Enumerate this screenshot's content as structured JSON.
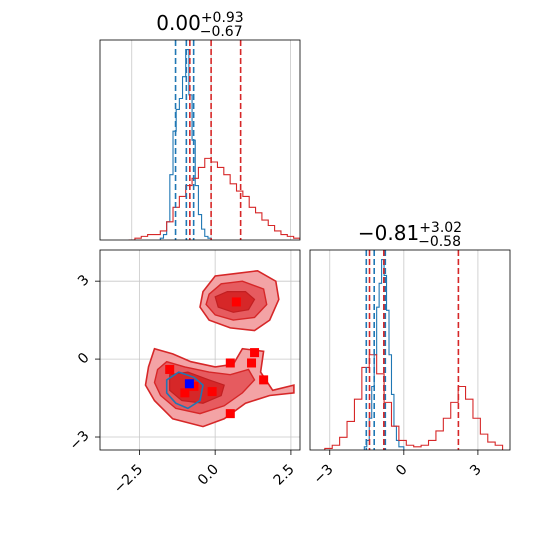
{
  "chart_data": [
    {
      "type": "histogram",
      "title_main": "0.00",
      "title_sup": "+0.93",
      "title_sub": "−0.67",
      "xlim": [
        -3.5,
        2.8
      ],
      "x_ticks": [
        -2.5,
        0.0,
        2.5
      ],
      "grid": true,
      "series": [
        {
          "color": "#1f77b4",
          "bin_edges": [
            -1.6,
            -1.5,
            -1.4,
            -1.3,
            -1.2,
            -1.1,
            -1.0,
            -0.9,
            -0.8,
            -0.7,
            -0.6,
            -0.5,
            -0.4,
            -0.3,
            -0.2,
            -0.1,
            0.0
          ],
          "counts": [
            1,
            3,
            10,
            36,
            60,
            72,
            78,
            90,
            105,
            80,
            55,
            30,
            14,
            6,
            2,
            1
          ]
        },
        {
          "color": "#d62728",
          "bin_edges": [
            -2.6,
            -2.4,
            -2.2,
            -2.0,
            -1.8,
            -1.6,
            -1.4,
            -1.2,
            -1.0,
            -0.8,
            -0.6,
            -0.4,
            -0.2,
            0.0,
            0.2,
            0.4,
            0.6,
            0.8,
            1.0,
            1.2,
            1.4,
            1.6,
            1.8,
            2.0,
            2.2,
            2.4,
            2.6,
            2.8
          ],
          "counts": [
            0,
            1,
            2,
            3,
            3,
            5,
            10,
            18,
            24,
            30,
            34,
            40,
            45,
            43,
            40,
            36,
            31,
            27,
            24,
            18,
            15,
            11,
            8,
            5,
            3,
            2,
            1
          ]
        }
      ],
      "quantile_lines": [
        {
          "color": "#1f77b4",
          "x": [
            -1.12,
            -0.78,
            -0.55
          ]
        },
        {
          "color": "#d62728",
          "x": [
            -0.67,
            0.0,
            0.93
          ]
        }
      ]
    },
    {
      "type": "histogram",
      "title_main": "−0.81",
      "title_sup": "+3.02",
      "title_sub": "−0.58",
      "xlim": [
        -3.8,
        4.3
      ],
      "x_ticks": [
        -3,
        0,
        3
      ],
      "grid": true,
      "series": [
        {
          "color": "#1f77b4",
          "bin_edges": [
            -1.6,
            -1.5,
            -1.4,
            -1.3,
            -1.2,
            -1.1,
            -1.0,
            -0.9,
            -0.8,
            -0.7,
            -0.6,
            -0.5,
            -0.4,
            -0.3,
            -0.2,
            0.0
          ],
          "counts": [
            2,
            6,
            20,
            40,
            60,
            90,
            105,
            120,
            110,
            88,
            60,
            35,
            15,
            6,
            2
          ]
        },
        {
          "color": "#d62728",
          "bin_edges": [
            -3.2,
            -2.9,
            -2.6,
            -2.3,
            -2.0,
            -1.7,
            -1.4,
            -1.1,
            -0.8,
            -0.5,
            -0.2,
            0.1,
            0.4,
            0.7,
            1.0,
            1.3,
            1.6,
            1.9,
            2.2,
            2.5,
            2.8,
            3.1,
            3.4,
            3.7,
            4.0
          ],
          "counts": [
            1,
            3,
            8,
            18,
            32,
            52,
            60,
            48,
            30,
            15,
            6,
            3,
            2,
            3,
            6,
            12,
            20,
            30,
            40,
            32,
            20,
            10,
            5,
            3
          ]
        }
      ],
      "quantile_lines": [
        {
          "color": "#1f77b4",
          "x": [
            -1.52,
            -1.2,
            -0.75
          ]
        },
        {
          "color": "#d62728",
          "x": [
            -1.39,
            -0.81,
            2.21
          ]
        }
      ]
    },
    {
      "type": "scatter",
      "subtype": "2d-contour",
      "xlim": [
        -3.8,
        2.8
      ],
      "ylim": [
        -3.5,
        4.2
      ],
      "x_ticks": [
        -2.5,
        0.0,
        2.5
      ],
      "x_tick_labels": [
        "−2.5",
        "0.0",
        "2.5"
      ],
      "y_ticks": [
        -3,
        0,
        3
      ],
      "y_tick_labels": [
        "−3",
        "0",
        "3"
      ],
      "grid": true,
      "markers": [
        {
          "x": 0.7,
          "y": 2.2,
          "color": "#ff0000"
        },
        {
          "x": 0.5,
          "y": -0.15,
          "color": "#ff0000"
        },
        {
          "x": 1.3,
          "y": 0.25,
          "color": "#ff0000"
        },
        {
          "x": 1.2,
          "y": -0.15,
          "color": "#ff0000"
        },
        {
          "x": 1.6,
          "y": -0.8,
          "color": "#ff0000"
        },
        {
          "x": -1.5,
          "y": -0.4,
          "color": "#ff0000"
        },
        {
          "x": -1.0,
          "y": -1.3,
          "color": "#ff0000"
        },
        {
          "x": -0.7,
          "y": -1.05,
          "color": "#ff0000"
        },
        {
          "x": -0.1,
          "y": -1.25,
          "color": "#ff0000"
        },
        {
          "x": 0.5,
          "y": -2.1,
          "color": "#ff0000"
        },
        {
          "x": -0.85,
          "y": -0.95,
          "color": "#0000ff"
        }
      ],
      "contours": {
        "red_outer": [
          [
            -2.2,
            -0.3
          ],
          [
            -2.0,
            0.4
          ],
          [
            -1.4,
            0.2
          ],
          [
            -0.8,
            -0.1
          ],
          [
            0.0,
            -0.3
          ],
          [
            0.6,
            -0.2
          ],
          [
            0.9,
            0.4
          ],
          [
            1.6,
            0.3
          ],
          [
            1.5,
            -0.5
          ],
          [
            1.9,
            -1.2
          ],
          [
            2.6,
            -1.0
          ],
          [
            2.6,
            -1.3
          ],
          [
            1.8,
            -1.4
          ],
          [
            1.0,
            -1.7
          ],
          [
            0.3,
            -2.3
          ],
          [
            -0.4,
            -2.6
          ],
          [
            -1.4,
            -2.3
          ],
          [
            -2.0,
            -1.6
          ],
          [
            -2.3,
            -1.0
          ]
        ],
        "red_mid": [
          [
            -1.9,
            -0.4
          ],
          [
            -1.6,
            -0.1
          ],
          [
            -1.0,
            -0.3
          ],
          [
            -0.2,
            -0.5
          ],
          [
            0.5,
            -0.6
          ],
          [
            1.1,
            -0.4
          ],
          [
            1.3,
            -0.8
          ],
          [
            0.9,
            -1.3
          ],
          [
            0.3,
            -1.8
          ],
          [
            -0.5,
            -2.1
          ],
          [
            -1.3,
            -1.9
          ],
          [
            -1.8,
            -1.4
          ],
          [
            -2.0,
            -0.9
          ]
        ],
        "red_inner": [
          [
            -1.5,
            -0.6
          ],
          [
            -0.9,
            -0.5
          ],
          [
            -0.2,
            -0.8
          ],
          [
            0.3,
            -1.0
          ],
          [
            0.2,
            -1.4
          ],
          [
            -0.4,
            -1.7
          ],
          [
            -1.1,
            -1.6
          ],
          [
            -1.5,
            -1.2
          ]
        ],
        "red_top_outer": [
          [
            -0.4,
            2.6
          ],
          [
            0.0,
            3.2
          ],
          [
            0.7,
            3.3
          ],
          [
            1.4,
            3.4
          ],
          [
            2.0,
            3.0
          ],
          [
            2.1,
            2.3
          ],
          [
            1.8,
            1.5
          ],
          [
            1.3,
            1.1
          ],
          [
            0.5,
            1.2
          ],
          [
            -0.2,
            1.5
          ],
          [
            -0.5,
            2.0
          ]
        ],
        "red_top_mid": [
          [
            -0.2,
            2.5
          ],
          [
            0.2,
            2.9
          ],
          [
            0.9,
            3.0
          ],
          [
            1.6,
            2.7
          ],
          [
            1.7,
            2.1
          ],
          [
            1.3,
            1.6
          ],
          [
            0.6,
            1.5
          ],
          [
            0.0,
            1.7
          ],
          [
            -0.3,
            2.1
          ]
        ],
        "red_top_inner": [
          [
            0.0,
            2.4
          ],
          [
            0.4,
            2.6
          ],
          [
            1.0,
            2.6
          ],
          [
            1.3,
            2.3
          ],
          [
            1.1,
            1.9
          ],
          [
            0.6,
            1.8
          ],
          [
            0.1,
            2.0
          ]
        ],
        "blue": [
          [
            -1.6,
            -0.8
          ],
          [
            -1.2,
            -0.5
          ],
          [
            -0.7,
            -0.7
          ],
          [
            -0.4,
            -1.0
          ],
          [
            -0.5,
            -1.6
          ],
          [
            -0.9,
            -1.9
          ],
          [
            -1.3,
            -1.7
          ],
          [
            -1.6,
            -1.3
          ]
        ]
      }
    }
  ]
}
